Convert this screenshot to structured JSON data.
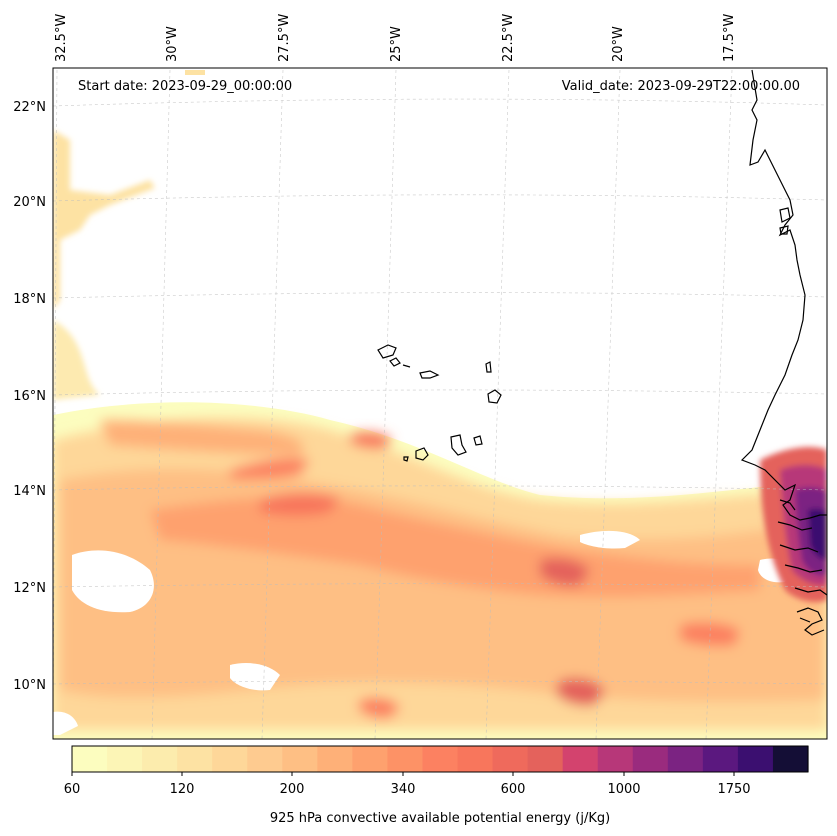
{
  "header": {
    "start_date": "Start date: 2023-09-29_00:00:00",
    "valid_date": "Valid_date: 2023-09-29T22:00:00.00"
  },
  "map": {
    "lon_labels": [
      "32.5°W",
      "30°W",
      "27.5°W",
      "25°W",
      "22.5°W",
      "20°W",
      "17.5°W"
    ],
    "lat_labels": [
      "22°N",
      "20°N",
      "18°N",
      "16°N",
      "14°N",
      "12°N",
      "10°N"
    ],
    "gridlines": true,
    "coastline_color": "#000000"
  },
  "colorbar": {
    "label": "925 hPa convective available potential energy (j/Kg)",
    "tick_labels": [
      "60",
      "120",
      "200",
      "340",
      "600",
      "1000",
      "1750"
    ],
    "colormap": "magma_r",
    "level_colors": [
      "#fcfdbf",
      "#fcf5b6",
      "#fcecad",
      "#fde2a3",
      "#fed799",
      "#fecb90",
      "#febf84",
      "#feb078",
      "#fea16e",
      "#fd9266",
      "#fc8161",
      "#f8765c",
      "#ef6a5c",
      "#e4625c",
      "#d3436e",
      "#b73779",
      "#9a2b7e",
      "#7b2382",
      "#5b187f",
      "#3b0f70",
      "#140e36"
    ]
  }
}
